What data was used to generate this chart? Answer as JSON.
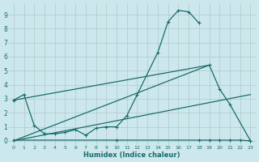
{
  "xlabel": "Humidex (Indice chaleur)",
  "bg_color": "#cce8ec",
  "grid_color": "#b0c8cc",
  "line_color": "#1a6b6b",
  "curve1": {
    "x": [
      0,
      1,
      2,
      3,
      4,
      5,
      6,
      7,
      8,
      9,
      10,
      11,
      12,
      14,
      15,
      16,
      17,
      18
    ],
    "y": [
      2.9,
      3.3,
      1.1,
      0.5,
      0.5,
      0.6,
      0.8,
      0.4,
      0.9,
      1.0,
      1.0,
      1.8,
      3.3,
      6.3,
      8.5,
      9.3,
      9.2,
      8.4
    ]
  },
  "curve2": {
    "x": [
      0,
      19,
      20,
      21,
      23
    ],
    "y": [
      2.9,
      5.4,
      3.7,
      2.6,
      0.0
    ]
  },
  "curve3": {
    "x": [
      0,
      10,
      18,
      19,
      20,
      21,
      22,
      23
    ],
    "y": [
      0.05,
      0.05,
      0.05,
      0.05,
      0.05,
      0.05,
      0.05,
      0.0
    ]
  },
  "curve4_straight": {
    "x": [
      0,
      19
    ],
    "y": [
      0.0,
      5.4
    ]
  },
  "curve5_straight": {
    "x": [
      0,
      23
    ],
    "y": [
      0.0,
      3.3
    ]
  },
  "xlim": [
    -0.5,
    23.5
  ],
  "ylim": [
    -0.3,
    9.8
  ],
  "yticks": [
    0,
    1,
    2,
    3,
    4,
    5,
    6,
    7,
    8,
    9
  ],
  "xticks": [
    0,
    1,
    2,
    3,
    4,
    5,
    6,
    7,
    8,
    9,
    10,
    11,
    12,
    13,
    14,
    15,
    16,
    17,
    18,
    19,
    20,
    21,
    22,
    23
  ],
  "figwidth": 3.2,
  "figheight": 2.0,
  "dpi": 100
}
